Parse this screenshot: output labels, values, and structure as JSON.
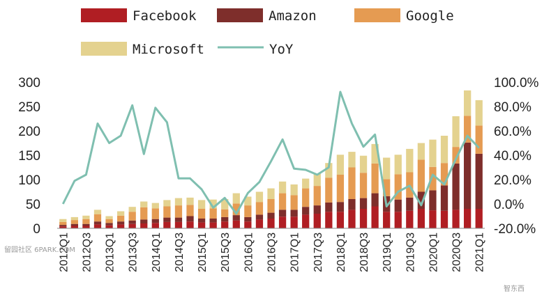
{
  "chart_data": {
    "type": "bar",
    "stacked": true,
    "categories": [
      "2012Q1",
      "2012Q2",
      "2012Q3",
      "2012Q4",
      "2013Q1",
      "2013Q2",
      "2013Q3",
      "2013Q4",
      "2014Q1",
      "2014Q2",
      "2014Q3",
      "2014Q4",
      "2015Q1",
      "2015Q2",
      "2015Q3",
      "2015Q4",
      "2016Q1",
      "2016Q2",
      "2016Q3",
      "2016Q4",
      "2017Q1",
      "2017Q2",
      "2017Q3",
      "2017Q4",
      "2018Q1",
      "2018Q2",
      "2018Q3",
      "2018Q4",
      "2019Q1",
      "2019Q2",
      "2019Q3",
      "2019Q4",
      "2020Q1",
      "2020Q2",
      "2020Q3",
      "2020Q4",
      "2021Q1"
    ],
    "x_tick_labels": [
      "2012Q1",
      "2012Q3",
      "2013Q1",
      "2013Q3",
      "2014Q1",
      "2014Q3",
      "2015Q1",
      "2015Q3",
      "2016Q1",
      "2016Q3",
      "2017Q1",
      "2017Q3",
      "2018Q1",
      "2018Q3",
      "2019Q1",
      "2019Q3",
      "2020Q1",
      "2020Q3",
      "2021Q1"
    ],
    "series": [
      {
        "name": "Facebook",
        "color": "#b01e23",
        "values": [
          4,
          5,
          5,
          8,
          6,
          8,
          9,
          10,
          11,
          13,
          13,
          14,
          12,
          12,
          14,
          16,
          14,
          18,
          20,
          24,
          24,
          28,
          30,
          34,
          34,
          38,
          40,
          45,
          34,
          34,
          36,
          40,
          37,
          36,
          38,
          40,
          40
        ]
      },
      {
        "name": "Amazon",
        "color": "#7e2e2b",
        "values": [
          3,
          4,
          4,
          6,
          5,
          6,
          7,
          8,
          8,
          9,
          9,
          11,
          8,
          8,
          9,
          11,
          9,
          10,
          12,
          14,
          14,
          16,
          17,
          19,
          20,
          22,
          22,
          27,
          32,
          25,
          27,
          35,
          41,
          52,
          95,
          136,
          113
        ]
      },
      {
        "name": "Google",
        "color": "#e59b52",
        "values": [
          6,
          8,
          10,
          15,
          8,
          12,
          18,
          25,
          22,
          23,
          25,
          23,
          20,
          21,
          16,
          24,
          24,
          26,
          28,
          34,
          30,
          38,
          40,
          51,
          56,
          65,
          52,
          61,
          35,
          52,
          52,
          66,
          48,
          46,
          34,
          55,
          58
        ]
      },
      {
        "name": "Microsoft",
        "color": "#e4d28f",
        "values": [
          6,
          6,
          7,
          9,
          6,
          9,
          10,
          12,
          11,
          13,
          15,
          15,
          18,
          18,
          21,
          21,
          18,
          21,
          22,
          24,
          22,
          20,
          25,
          30,
          41,
          32,
          35,
          40,
          44,
          40,
          48,
          34,
          56,
          56,
          63,
          52,
          52
        ]
      }
    ],
    "line_series": {
      "name": "YoY",
      "color": "#7fbfb0",
      "axis": "right",
      "values": [
        0.0,
        0.19,
        0.24,
        0.66,
        0.5,
        0.56,
        0.81,
        0.41,
        0.79,
        0.67,
        0.21,
        0.21,
        0.12,
        -0.03,
        0.05,
        -0.08,
        0.09,
        0.18,
        0.35,
        0.53,
        0.29,
        0.28,
        0.24,
        0.3,
        0.92,
        0.66,
        0.47,
        0.57,
        -0.02,
        0.1,
        0.15,
        -0.01,
        0.24,
        0.16,
        0.37,
        0.56,
        0.46
      ]
    },
    "left_axis": {
      "ylim": [
        0,
        300
      ],
      "ticks": [
        "0",
        "50",
        "100",
        "150",
        "200",
        "250",
        "300"
      ]
    },
    "right_axis": {
      "ylim": [
        -0.2,
        1.0
      ],
      "ticks": [
        "-20.0%",
        "0.0%",
        "20.0%",
        "40.0%",
        "60.0%",
        "80.0%",
        "100.0%"
      ]
    },
    "legend": {
      "placement": "top",
      "entries": [
        "Facebook",
        "Amazon",
        "Google",
        "Microsoft",
        "YoY"
      ]
    },
    "grid": false,
    "title": "",
    "xlabel": "",
    "ylabel": ""
  },
  "watermarks": {
    "left": "留园社区 6PARK.COM",
    "right": "智东西"
  }
}
